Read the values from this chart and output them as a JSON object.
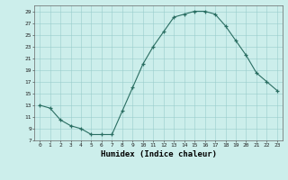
{
  "x": [
    0,
    1,
    2,
    3,
    4,
    5,
    6,
    7,
    8,
    9,
    10,
    11,
    12,
    13,
    14,
    15,
    16,
    17,
    18,
    19,
    20,
    21,
    22,
    23
  ],
  "y": [
    13,
    12.5,
    10.5,
    9.5,
    9,
    8,
    8,
    8,
    12,
    16,
    20,
    23,
    25.5,
    28,
    28.5,
    29,
    29,
    28.5,
    26.5,
    24,
    21.5,
    18.5,
    17,
    15.5
  ],
  "xlabel": "Humidex (Indice chaleur)",
  "xlim": [
    -0.5,
    23.5
  ],
  "ylim": [
    7,
    30
  ],
  "yticks": [
    7,
    9,
    11,
    13,
    15,
    17,
    19,
    21,
    23,
    25,
    27,
    29
  ],
  "xticks": [
    0,
    1,
    2,
    3,
    4,
    5,
    6,
    7,
    8,
    9,
    10,
    11,
    12,
    13,
    14,
    15,
    16,
    17,
    18,
    19,
    20,
    21,
    22,
    23
  ],
  "line_color": "#2a6e62",
  "bg_color": "#cceeeb",
  "grid_color": "#99cccc"
}
